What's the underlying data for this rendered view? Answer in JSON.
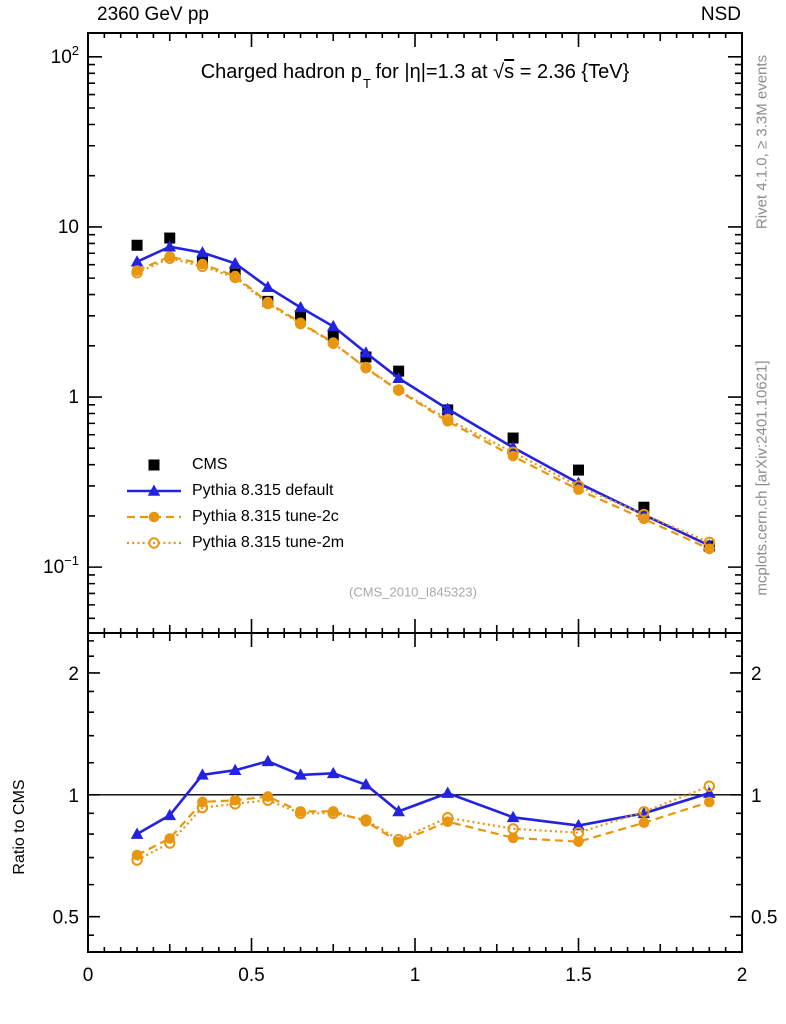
{
  "header": {
    "left": "2360 GeV pp",
    "right": "NSD"
  },
  "side_notes": {
    "top": "Rivet 4.1.0, ≥ 3.3M events",
    "bottom": "mcplots.cern.ch [arXiv:2401.10621]"
  },
  "watermark": "(CMS_2010_I845323)",
  "ratio_ylabel": "Ratio to CMS",
  "title": {
    "part1": "Charged hadron p",
    "sub": "T",
    "part2": " for |η|=1.3 at ",
    "sqrt_sign": "√",
    "sqrt_arg": "s",
    "part3": " = 2.36 {TeV}"
  },
  "colors": {
    "cms": "#000000",
    "pythia_default": "#2222e0",
    "pythia_tunes": "#e89610",
    "frame": "#000000",
    "side_note_gray": "#8c8c8c",
    "watermark_gray": "#a8a8a8"
  },
  "chart_data": {
    "type": "line",
    "title": "Charged hadron pT for |eta|=1.3 at sqrt(s) = 2.36 {TeV}",
    "xlabel_ticks": [
      {
        "v": 0,
        "label": "0"
      },
      {
        "v": 0.5,
        "label": "0.5"
      },
      {
        "v": 1,
        "label": "1"
      },
      {
        "v": 1.5,
        "label": "1.5"
      },
      {
        "v": 2,
        "label": "2"
      }
    ],
    "main_y_ticks": [
      {
        "v": 100,
        "base": "10",
        "sup": "2"
      },
      {
        "v": 10,
        "base": "10",
        "sup": ""
      },
      {
        "v": 1,
        "base": "1",
        "sup": ""
      },
      {
        "v": 0.1,
        "base": "10",
        "sup": "−1"
      }
    ],
    "ratio_y_ticks": [
      {
        "v": 2,
        "label": "2"
      },
      {
        "v": 1,
        "label": "1"
      },
      {
        "v": 0.5,
        "label": "0.5"
      }
    ],
    "ratio_minor_ticks": [
      2.4,
      2.2,
      1.8,
      1.6,
      1.4,
      1.2,
      0.9,
      0.8,
      0.7,
      0.6,
      0.45
    ],
    "xlim": [
      0,
      2
    ],
    "main_ylim": [
      0.041,
      138
    ],
    "ratio_ylim": [
      0.409,
      2.51
    ],
    "grid": false,
    "legend_position": "middle-left",
    "x": [
      0.15,
      0.25,
      0.35,
      0.45,
      0.55,
      0.65,
      0.75,
      0.85,
      0.95,
      1.1,
      1.3,
      1.5,
      1.7,
      1.9
    ],
    "series": [
      {
        "name": "CMS",
        "marker": "square",
        "fill": "filled",
        "color": "#000000",
        "line": "none",
        "values": [
          7.8,
          8.6,
          6.3,
          5.3,
          3.65,
          3.0,
          2.3,
          1.72,
          1.42,
          0.84,
          0.574,
          0.372,
          0.225,
          0.133
        ],
        "ratio": null
      },
      {
        "name": "Pythia 8.315 default",
        "marker": "triangle",
        "fill": "filled",
        "color": "#2222e0",
        "line": "solid",
        "values": [
          6.24,
          7.65,
          7.06,
          6.1,
          4.42,
          3.36,
          2.6,
          1.82,
          1.29,
          0.85,
          0.505,
          0.312,
          0.203,
          0.134
        ],
        "ratio": [
          0.8,
          0.89,
          1.12,
          1.15,
          1.21,
          1.12,
          1.13,
          1.06,
          0.91,
          1.01,
          0.88,
          0.84,
          0.9,
          1.01
        ]
      },
      {
        "name": "Pythia 8.315 tune-2c",
        "marker": "circle",
        "fill": "filled",
        "color": "#e89610",
        "line": "dashed",
        "values": [
          5.54,
          6.7,
          6.05,
          5.14,
          3.61,
          2.73,
          2.09,
          1.48,
          1.09,
          0.72,
          0.449,
          0.285,
          0.192,
          0.128
        ],
        "ratio": [
          0.71,
          0.78,
          0.96,
          0.97,
          0.99,
          0.91,
          0.91,
          0.86,
          0.765,
          0.858,
          0.783,
          0.766,
          0.853,
          0.96
        ]
      },
      {
        "name": "Pythia 8.315 tune-2m",
        "marker": "circle",
        "fill": "open",
        "color": "#e89610",
        "line": "dotted",
        "values": [
          5.38,
          6.54,
          5.86,
          5.04,
          3.54,
          2.7,
          2.07,
          1.49,
          1.1,
          0.74,
          0.473,
          0.3,
          0.204,
          0.14
        ],
        "ratio": [
          0.69,
          0.76,
          0.93,
          0.95,
          0.97,
          0.9,
          0.9,
          0.867,
          0.775,
          0.878,
          0.824,
          0.806,
          0.908,
          1.05
        ]
      }
    ]
  }
}
